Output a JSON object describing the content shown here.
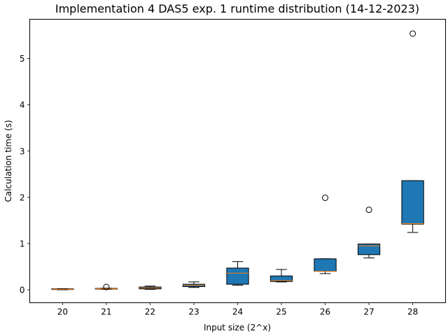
{
  "chart_data": {
    "type": "box",
    "title": "Implementation 4 DAS5 exp. 1 runtime distribution (14-12-2023)",
    "xlabel": "Input size (2^x)",
    "ylabel": "Calculation time (s)",
    "categories": [
      "20",
      "21",
      "22",
      "23",
      "24",
      "25",
      "26",
      "27",
      "28"
    ],
    "ylim": [
      -0.28,
      5.85
    ],
    "yticks": [
      0,
      1,
      2,
      3,
      4,
      5
    ],
    "grid": false,
    "boxes": [
      {
        "category": "20",
        "whisker_low": 0.0,
        "q1": 0.005,
        "median": 0.01,
        "q3": 0.02,
        "whisker_high": 0.025,
        "outliers": []
      },
      {
        "category": "21",
        "whisker_low": 0.01,
        "q1": 0.015,
        "median": 0.02,
        "q3": 0.03,
        "whisker_high": 0.035,
        "outliers": [
          0.06
        ]
      },
      {
        "category": "22",
        "whisker_low": 0.01,
        "q1": 0.02,
        "median": 0.04,
        "q3": 0.06,
        "whisker_high": 0.08,
        "outliers": []
      },
      {
        "category": "23",
        "whisker_low": 0.05,
        "q1": 0.07,
        "median": 0.1,
        "q3": 0.12,
        "whisker_high": 0.17,
        "outliers": []
      },
      {
        "category": "24",
        "whisker_low": 0.1,
        "q1": 0.12,
        "median": 0.36,
        "q3": 0.47,
        "whisker_high": 0.61,
        "outliers": []
      },
      {
        "category": "25",
        "whisker_low": 0.17,
        "q1": 0.18,
        "median": 0.2,
        "q3": 0.3,
        "whisker_high": 0.44,
        "outliers": []
      },
      {
        "category": "26",
        "whisker_low": 0.35,
        "q1": 0.4,
        "median": 0.4,
        "q3": 0.67,
        "whisker_high": 0.67,
        "outliers": [
          1.99
        ]
      },
      {
        "category": "27",
        "whisker_low": 0.69,
        "q1": 0.76,
        "median": 0.95,
        "q3": 0.99,
        "whisker_high": 0.99,
        "outliers": [
          1.73
        ]
      },
      {
        "category": "28",
        "whisker_low": 1.24,
        "q1": 1.42,
        "median": 1.43,
        "q3": 2.36,
        "whisker_high": 2.36,
        "outliers": [
          5.54
        ]
      }
    ]
  },
  "colors": {
    "box_fill": "#1f77b4",
    "median": "#ff7f0e",
    "edge": "#000000",
    "background": "#ffffff"
  }
}
